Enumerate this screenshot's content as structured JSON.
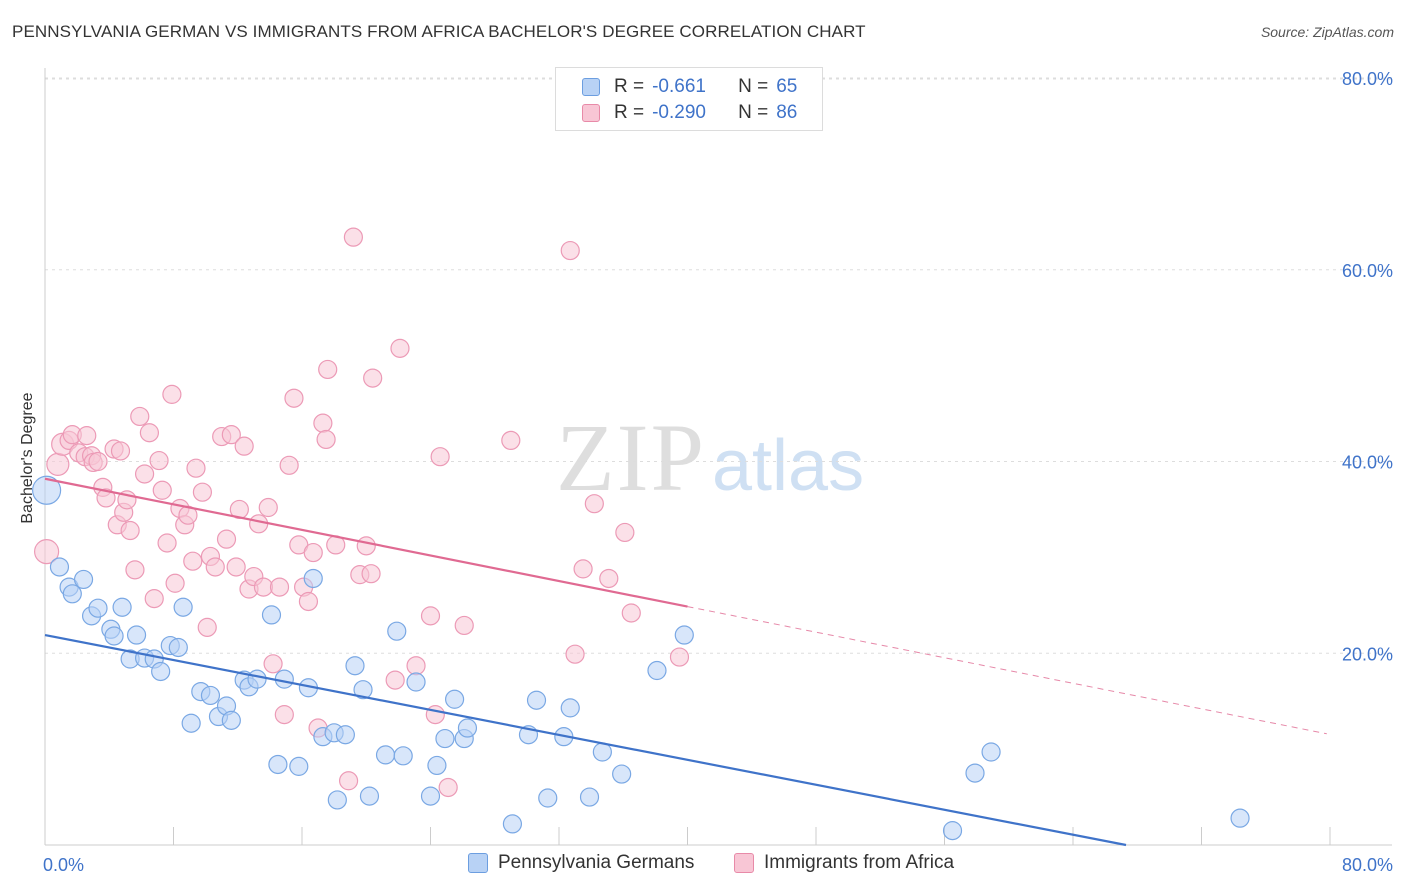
{
  "title": "PENNSYLVANIA GERMAN VS IMMIGRANTS FROM AFRICA BACHELOR'S DEGREE CORRELATION CHART",
  "source": "Source: ZipAtlas.com",
  "watermark": {
    "zip": "ZIP",
    "atlas": "atlas"
  },
  "legend": {
    "r_label": "R =",
    "n_label": "N =",
    "blue": {
      "r": "-0.661",
      "n": "65"
    },
    "pink": {
      "r": "-0.290",
      "n": "86"
    }
  },
  "bottom_legend": {
    "blue": "Pennsylvania Germans",
    "pink": "Immigrants from Africa"
  },
  "colors": {
    "blue": "#3f73c9",
    "blue_fill": "#b8d2f5",
    "pink": "#e06a92",
    "pink_fill": "#f8c6d5",
    "grid": "#dddddd"
  },
  "chart_data": {
    "type": "scatter",
    "title": "PENNSYLVANIA GERMAN VS IMMIGRANTS FROM AFRICA BACHELOR'S DEGREE CORRELATION CHART",
    "xlabel": "",
    "ylabel": "Bachelor's Degree",
    "xlim": [
      0,
      80
    ],
    "ylim": [
      0,
      80
    ],
    "x_tick_labels": [
      "0.0%",
      "80.0%"
    ],
    "y_tick_labels": [
      {
        "value": 20,
        "label": "20.0%"
      },
      {
        "value": 40,
        "label": "40.0%"
      },
      {
        "value": 60,
        "label": "60.0%"
      },
      {
        "value": 80,
        "label": "80.0%"
      }
    ],
    "grid": "horizontal dashed",
    "legend_position": "top-center",
    "series": [
      {
        "name": "Pennsylvania Germans",
        "color": "#3f73c9",
        "trend": {
          "x": [
            0,
            67.3
          ],
          "y": [
            21.9,
            0.0
          ],
          "dashed_from": null
        },
        "points": [
          [
            0.1,
            37.0,
            14
          ],
          [
            0.9,
            29.0,
            9
          ],
          [
            1.5,
            26.9,
            9
          ],
          [
            1.7,
            26.2,
            9
          ],
          [
            2.4,
            27.7,
            9
          ],
          [
            2.9,
            23.9,
            9
          ],
          [
            3.3,
            24.7,
            9
          ],
          [
            4.1,
            22.5,
            9
          ],
          [
            4.3,
            21.8,
            9
          ],
          [
            4.8,
            24.8,
            9
          ],
          [
            5.3,
            19.4,
            9
          ],
          [
            5.7,
            21.9,
            9
          ],
          [
            6.2,
            19.5,
            9
          ],
          [
            6.8,
            19.4,
            9
          ],
          [
            7.2,
            18.1,
            9
          ],
          [
            7.8,
            20.8,
            9
          ],
          [
            8.3,
            20.6,
            9
          ],
          [
            8.6,
            24.8,
            9
          ],
          [
            9.1,
            12.7,
            9
          ],
          [
            9.7,
            16.0,
            9
          ],
          [
            10.3,
            15.6,
            9
          ],
          [
            10.8,
            13.4,
            9
          ],
          [
            11.3,
            14.5,
            9
          ],
          [
            11.6,
            13.0,
            9
          ],
          [
            12.4,
            17.2,
            9
          ],
          [
            12.7,
            16.5,
            9
          ],
          [
            13.2,
            17.3,
            9
          ],
          [
            14.1,
            24.0,
            9
          ],
          [
            14.5,
            8.4,
            9
          ],
          [
            14.9,
            17.3,
            9
          ],
          [
            15.8,
            8.2,
            9
          ],
          [
            16.4,
            16.4,
            9
          ],
          [
            16.7,
            27.8,
            9
          ],
          [
            17.3,
            11.3,
            9
          ],
          [
            18.0,
            11.7,
            9
          ],
          [
            18.2,
            4.7,
            9
          ],
          [
            18.7,
            11.5,
            9
          ],
          [
            19.3,
            18.7,
            9
          ],
          [
            19.8,
            16.2,
            9
          ],
          [
            20.2,
            5.1,
            9
          ],
          [
            21.2,
            9.4,
            9
          ],
          [
            21.9,
            22.3,
            9
          ],
          [
            22.3,
            9.3,
            9
          ],
          [
            23.1,
            17.0,
            9
          ],
          [
            24.0,
            5.1,
            9
          ],
          [
            24.4,
            8.3,
            9
          ],
          [
            24.9,
            11.1,
            9
          ],
          [
            25.5,
            15.2,
            9
          ],
          [
            26.1,
            11.1,
            9
          ],
          [
            26.3,
            12.2,
            9
          ],
          [
            29.1,
            2.2,
            9
          ],
          [
            30.1,
            11.5,
            9
          ],
          [
            30.6,
            15.1,
            9
          ],
          [
            31.3,
            4.9,
            9
          ],
          [
            32.3,
            11.3,
            9
          ],
          [
            32.7,
            14.3,
            9
          ],
          [
            33.9,
            5.0,
            9
          ],
          [
            34.7,
            9.7,
            9
          ],
          [
            35.9,
            7.4,
            9
          ],
          [
            38.1,
            18.2,
            9
          ],
          [
            39.8,
            21.9,
            9
          ],
          [
            56.5,
            1.5,
            9
          ],
          [
            57.9,
            7.5,
            9
          ],
          [
            58.9,
            9.7,
            9
          ],
          [
            74.4,
            2.8,
            9
          ]
        ]
      },
      {
        "name": "Immigrants from Africa",
        "color": "#e06a92",
        "trend": {
          "x": [
            0,
            79.8
          ],
          "y": [
            38.2,
            11.6
          ],
          "dashed_from": 40.0
        },
        "points": [
          [
            0.1,
            30.6,
            12
          ],
          [
            0.8,
            39.7,
            11
          ],
          [
            1.1,
            41.8,
            11
          ],
          [
            1.5,
            42.2,
            9
          ],
          [
            1.7,
            42.8,
            9
          ],
          [
            2.1,
            40.9,
            9
          ],
          [
            2.5,
            40.5,
            9
          ],
          [
            2.6,
            42.7,
            9
          ],
          [
            2.9,
            40.6,
            9
          ],
          [
            3.0,
            39.9,
            9
          ],
          [
            3.3,
            40.0,
            9
          ],
          [
            3.6,
            37.3,
            9
          ],
          [
            3.8,
            36.2,
            9
          ],
          [
            4.3,
            41.3,
            9
          ],
          [
            4.5,
            33.4,
            9
          ],
          [
            4.7,
            41.1,
            9
          ],
          [
            4.9,
            34.7,
            9
          ],
          [
            5.1,
            36.0,
            9
          ],
          [
            5.3,
            32.8,
            9
          ],
          [
            5.6,
            28.7,
            9
          ],
          [
            5.9,
            44.7,
            9
          ],
          [
            6.2,
            38.7,
            9
          ],
          [
            6.5,
            43.0,
            9
          ],
          [
            6.8,
            25.7,
            9
          ],
          [
            7.1,
            40.1,
            9
          ],
          [
            7.3,
            37.0,
            9
          ],
          [
            7.6,
            31.5,
            9
          ],
          [
            7.9,
            47.0,
            9
          ],
          [
            8.1,
            27.3,
            9
          ],
          [
            8.4,
            35.1,
            9
          ],
          [
            8.7,
            33.4,
            9
          ],
          [
            8.9,
            34.4,
            9
          ],
          [
            9.2,
            29.6,
            9
          ],
          [
            9.4,
            39.3,
            9
          ],
          [
            9.8,
            36.8,
            9
          ],
          [
            10.1,
            22.7,
            9
          ],
          [
            10.3,
            30.1,
            9
          ],
          [
            10.6,
            29.0,
            9
          ],
          [
            11.0,
            42.6,
            9
          ],
          [
            11.3,
            31.9,
            9
          ],
          [
            11.6,
            42.8,
            9
          ],
          [
            11.9,
            29.0,
            9
          ],
          [
            12.1,
            35.0,
            9
          ],
          [
            12.4,
            41.6,
            9
          ],
          [
            12.7,
            26.7,
            9
          ],
          [
            13.0,
            28.0,
            9
          ],
          [
            13.3,
            33.5,
            9
          ],
          [
            13.6,
            26.9,
            9
          ],
          [
            13.9,
            35.2,
            9
          ],
          [
            14.2,
            18.9,
            9
          ],
          [
            14.6,
            26.9,
            9
          ],
          [
            14.9,
            13.6,
            9
          ],
          [
            15.2,
            39.6,
            9
          ],
          [
            15.5,
            46.6,
            9
          ],
          [
            15.8,
            31.3,
            9
          ],
          [
            16.1,
            26.9,
            9
          ],
          [
            16.4,
            25.4,
            9
          ],
          [
            16.7,
            30.5,
            9
          ],
          [
            17.0,
            12.2,
            9
          ],
          [
            17.3,
            44.0,
            9
          ],
          [
            17.5,
            42.3,
            9
          ],
          [
            17.6,
            49.6,
            9
          ],
          [
            18.1,
            31.3,
            9
          ],
          [
            18.9,
            6.7,
            9
          ],
          [
            19.2,
            63.4,
            9
          ],
          [
            19.6,
            28.2,
            9
          ],
          [
            20.0,
            31.2,
            9
          ],
          [
            20.4,
            48.7,
            9
          ],
          [
            20.3,
            28.3,
            9
          ],
          [
            21.8,
            17.2,
            9
          ],
          [
            22.1,
            51.8,
            9
          ],
          [
            23.1,
            18.7,
            9
          ],
          [
            24.0,
            23.9,
            9
          ],
          [
            24.3,
            13.6,
            9
          ],
          [
            24.6,
            40.5,
            9
          ],
          [
            25.1,
            6.0,
            9
          ],
          [
            26.1,
            22.9,
            9
          ],
          [
            29.0,
            42.2,
            9
          ],
          [
            32.7,
            62.0,
            9
          ],
          [
            33.0,
            19.9,
            9
          ],
          [
            33.5,
            28.8,
            9
          ],
          [
            34.2,
            35.6,
            9
          ],
          [
            35.1,
            27.8,
            9
          ],
          [
            36.1,
            32.6,
            9
          ],
          [
            36.5,
            24.2,
            9
          ],
          [
            39.5,
            19.6,
            9
          ]
        ]
      }
    ]
  }
}
